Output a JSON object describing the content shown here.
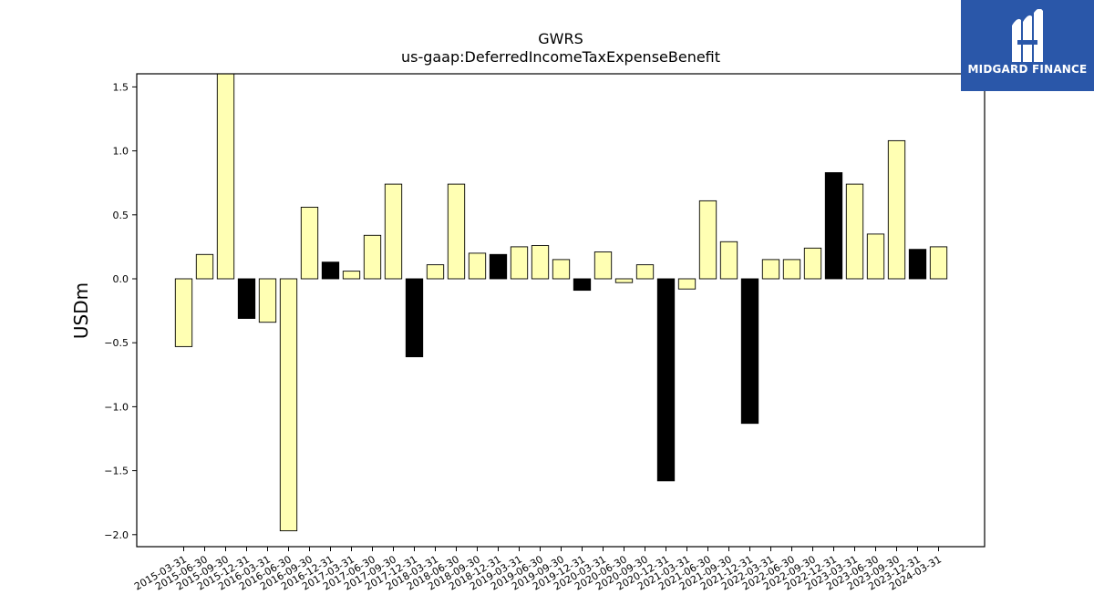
{
  "chart_data": {
    "type": "bar",
    "title": "GWRS",
    "subtitle": "us-gaap:DeferredIncomeTaxExpenseBenefit",
    "ylabel": "USDm",
    "xlabel": "",
    "ylim": [
      -2.1,
      1.6
    ],
    "yticks": [
      -2.0,
      -1.5,
      -1.0,
      -0.5,
      0.0,
      0.5,
      1.0,
      1.5
    ],
    "ytick_labels": [
      "−2.0",
      "−1.5",
      "−1.0",
      "−0.5",
      "0.0",
      "0.5",
      "1.0",
      "1.5"
    ],
    "grid": false,
    "colors": {
      "yellow": "#ffffb3",
      "black": "#000000",
      "edge": "#000000"
    },
    "categories": [
      "2015-03-31",
      "2015-06-30",
      "2015-09-30",
      "2015-12-31",
      "2016-03-31",
      "2016-06-30",
      "2016-09-30",
      "2016-12-31",
      "2017-03-31",
      "2017-06-30",
      "2017-09-30",
      "2017-12-31",
      "2018-03-31",
      "2018-06-30",
      "2018-09-30",
      "2018-12-31",
      "2019-03-31",
      "2019-06-30",
      "2019-09-30",
      "2019-12-31",
      "2020-03-31",
      "2020-06-30",
      "2020-09-30",
      "2020-12-31",
      "2021-03-31",
      "2021-06-30",
      "2021-09-30",
      "2021-12-31",
      "2022-03-31",
      "2022-06-30",
      "2022-09-30",
      "2022-12-31",
      "2023-03-31",
      "2023-06-30",
      "2023-09-30",
      "2023-12-31",
      "2024-03-31"
    ],
    "values": [
      -0.53,
      0.19,
      1.62,
      -0.31,
      -0.34,
      -1.97,
      0.56,
      0.13,
      0.06,
      0.34,
      0.74,
      -0.61,
      0.11,
      0.74,
      0.2,
      0.19,
      0.25,
      0.26,
      0.15,
      -0.09,
      0.21,
      -0.03,
      0.11,
      -1.58,
      -0.08,
      0.61,
      0.29,
      -1.13,
      0.15,
      0.15,
      0.24,
      0.83,
      0.74,
      0.35,
      1.08,
      0.23,
      0.25
    ],
    "bar_colors": [
      "yellow",
      "yellow",
      "yellow",
      "black",
      "yellow",
      "yellow",
      "yellow",
      "black",
      "yellow",
      "yellow",
      "yellow",
      "black",
      "yellow",
      "yellow",
      "yellow",
      "black",
      "yellow",
      "yellow",
      "yellow",
      "black",
      "yellow",
      "yellow",
      "yellow",
      "black",
      "yellow",
      "yellow",
      "yellow",
      "black",
      "yellow",
      "yellow",
      "yellow",
      "black",
      "yellow",
      "yellow",
      "yellow",
      "black",
      "yellow"
    ]
  },
  "logo": {
    "text": "MIDGARD FINANCE",
    "color": "#2a57a9"
  }
}
